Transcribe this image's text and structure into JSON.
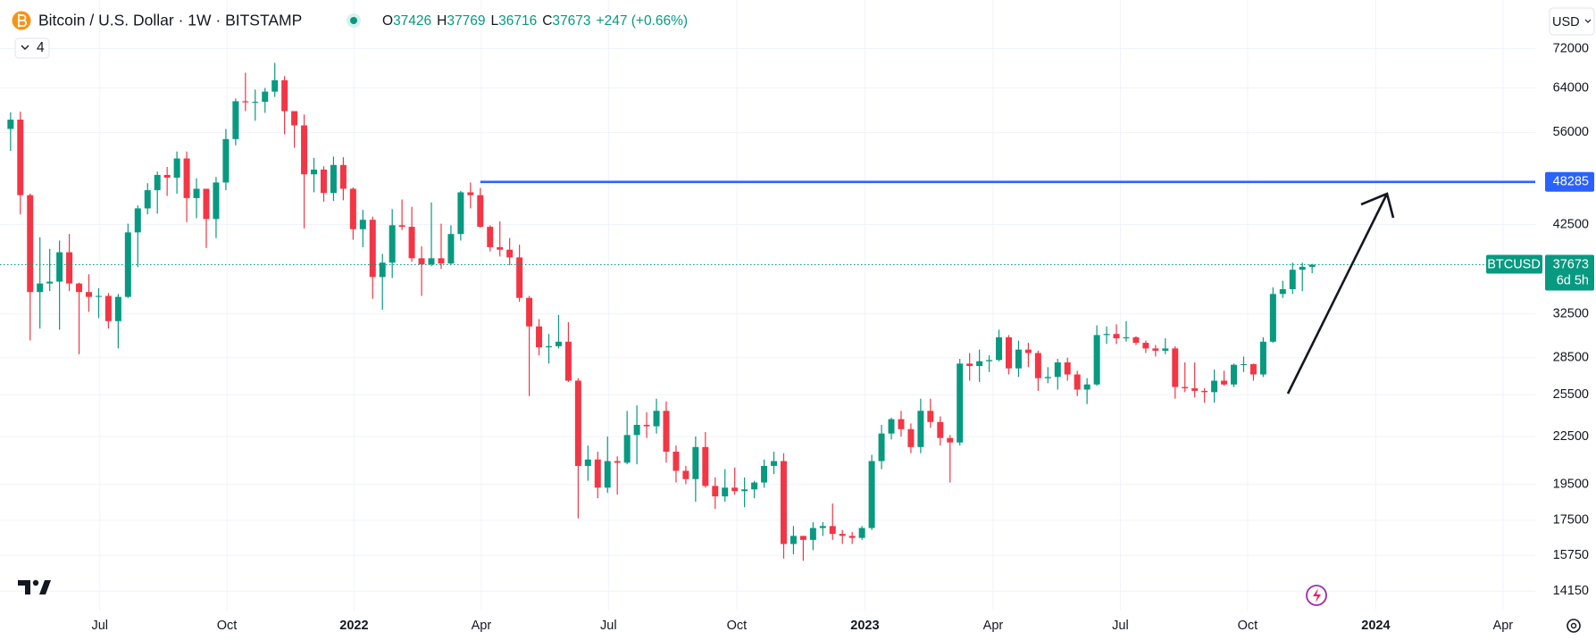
{
  "header": {
    "symbol": "Bitcoin / U.S. Dollar · 1W · BITSTAMP",
    "ohlc_letters": [
      "O",
      "H",
      "L",
      "C"
    ],
    "change": "+247 (+0.66%)",
    "indicator_count": "4",
    "currency": "USD"
  },
  "chart_data": {
    "type": "candlestick",
    "up_color": "#089981",
    "down_color": "#f23645",
    "log_scale": true,
    "grid": true,
    "open": [
      56600,
      58200,
      46400,
      34700,
      35600,
      35800,
      39100,
      35600,
      34700,
      34200,
      34300,
      31800,
      34200,
      41500,
      44600,
      47100,
      49300,
      48900,
      51800,
      46000,
      47300,
      43200,
      48200,
      54900,
      61500,
      61300,
      61400,
      63300,
      65500,
      59700,
      57200,
      49400,
      50100,
      46700,
      50800,
      47300,
      41900,
      43100,
      36300,
      37900,
      42400,
      42200,
      38400,
      37700,
      38400,
      37800,
      41300,
      46800,
      46400,
      42200,
      39700,
      39400,
      38500,
      34100,
      31300,
      29400,
      29500,
      29900,
      26600,
      20600,
      21000,
      19300,
      20900,
      20800,
      22600,
      23300,
      23200,
      24300,
      21500,
      20300,
      19800,
      21800,
      19400,
      18800,
      19300,
      19100,
      19200,
      19600,
      20600,
      20900,
      16300,
      16700,
      16500,
      17100,
      17200,
      16800,
      16700,
      16600,
      17100,
      20900,
      22700,
      23700,
      23000,
      21800,
      24300,
      23500,
      22400,
      22100,
      28000,
      27800,
      28200,
      28300,
      30300,
      27600,
      29200,
      28900,
      26800,
      26900,
      28100,
      27100,
      25900,
      26300,
      30500,
      30600,
      30200,
      30300,
      29800,
      29300,
      29100,
      29300,
      26100,
      26000,
      25800,
      25700,
      26600,
      26300,
      27900,
      27950,
      27100,
      29900,
      34500,
      35000,
      37100,
      37426
    ],
    "high": [
      59500,
      59600,
      46600,
      40900,
      39500,
      40500,
      41300,
      35700,
      36600,
      35100,
      34600,
      34500,
      42600,
      45000,
      48100,
      49800,
      50500,
      52900,
      52900,
      48800,
      47300,
      49000,
      56600,
      62000,
      67000,
      63700,
      64000,
      69000,
      66300,
      59700,
      59100,
      51900,
      50600,
      52100,
      52000,
      47500,
      44400,
      43500,
      38900,
      44500,
      45800,
      44800,
      39800,
      45400,
      42600,
      42400,
      47000,
      48200,
      47400,
      42400,
      42900,
      40800,
      40000,
      34300,
      32000,
      30600,
      32400,
      31700,
      26800,
      21900,
      21500,
      22500,
      21200,
      24300,
      24700,
      24200,
      25200,
      25000,
      21900,
      20600,
      22500,
      22800,
      19900,
      20400,
      20500,
      19900,
      19700,
      21000,
      21500,
      21400,
      17200,
      16700,
      17400,
      17400,
      18400,
      17000,
      16900,
      17200,
      21300,
      23300,
      23800,
      24300,
      23400,
      25200,
      25200,
      23900,
      22600,
      28400,
      28900,
      29200,
      28700,
      31000,
      30500,
      30000,
      29800,
      29100,
      27700,
      28400,
      28500,
      27400,
      26800,
      31400,
      31300,
      31500,
      31800,
      30400,
      30000,
      29600,
      30200,
      29500,
      28100,
      28100,
      26000,
      27500,
      27400,
      28000,
      28600,
      28000,
      30300,
      35200,
      35900,
      37900,
      37900,
      37769
    ],
    "low": [
      53000,
      43800,
      30000,
      31100,
      34800,
      31000,
      34800,
      28800,
      32700,
      32100,
      31100,
      29300,
      34100,
      37400,
      43800,
      43900,
      46300,
      46600,
      42800,
      43300,
      39600,
      40800,
      47100,
      53900,
      59700,
      58000,
      59400,
      62300,
      55700,
      53500,
      42000,
      46800,
      45500,
      45600,
      45700,
      40600,
      39700,
      34000,
      32900,
      36200,
      41800,
      38000,
      34300,
      37500,
      37200,
      37600,
      40500,
      44600,
      42100,
      39200,
      38600,
      37600,
      33700,
      25400,
      28700,
      28000,
      29300,
      26500,
      17600,
      19700,
      18700,
      19000,
      18900,
      20700,
      20700,
      22400,
      22700,
      20800,
      19600,
      19500,
      18500,
      19300,
      18100,
      18500,
      18900,
      18200,
      18700,
      19300,
      20100,
      15600,
      15800,
      15500,
      16000,
      16700,
      16500,
      16300,
      16300,
      16500,
      17000,
      20400,
      22300,
      22500,
      21400,
      21400,
      23100,
      21900,
      19600,
      21900,
      26600,
      26500,
      27300,
      28200,
      27100,
      26900,
      27700,
      25800,
      26400,
      25900,
      26600,
      25400,
      24800,
      26200,
      29700,
      29700,
      29900,
      29600,
      28900,
      28600,
      28800,
      25200,
      25700,
      25300,
      24900,
      24900,
      26200,
      26100,
      27300,
      26600,
      26900,
      29800,
      34100,
      34500,
      34800,
      36716
    ],
    "close": [
      58200,
      46400,
      34700,
      35600,
      35800,
      39100,
      35600,
      34700,
      34200,
      34300,
      31800,
      34200,
      41500,
      44600,
      47100,
      49300,
      48900,
      51800,
      46000,
      47300,
      43200,
      48200,
      54900,
      61500,
      61300,
      61400,
      63300,
      65500,
      59700,
      57200,
      49400,
      50100,
      46700,
      50800,
      47300,
      41900,
      43100,
      36300,
      37900,
      42400,
      42200,
      38400,
      37700,
      38400,
      37800,
      41300,
      46800,
      46400,
      42200,
      39700,
      39400,
      38500,
      34100,
      31300,
      29400,
      29500,
      29900,
      26600,
      20600,
      21000,
      19300,
      20900,
      20800,
      22600,
      23300,
      23200,
      24300,
      21500,
      20300,
      19800,
      21800,
      19400,
      18800,
      19300,
      19100,
      19200,
      19600,
      20600,
      20900,
      16300,
      16700,
      16500,
      17100,
      17200,
      16800,
      16700,
      16600,
      17100,
      20900,
      22700,
      23700,
      23000,
      21800,
      24300,
      23500,
      22400,
      22100,
      28000,
      27800,
      28200,
      28300,
      30300,
      27600,
      29200,
      28900,
      26800,
      26900,
      28100,
      27100,
      25900,
      26300,
      30500,
      30600,
      30200,
      30300,
      29800,
      29300,
      29100,
      29300,
      26100,
      26000,
      25800,
      25700,
      26600,
      26300,
      27900,
      27950,
      27100,
      29900,
      34500,
      35000,
      37100,
      37426,
      37673
    ],
    "xlim": [
      -1.08,
      155.8
    ],
    "xticks": [
      {
        "value": 9.12,
        "label": "Jul"
      },
      {
        "value": 22.1,
        "label": "Oct"
      },
      {
        "value": 35.1,
        "label": "2022"
      },
      {
        "value": 48.1,
        "label": "Apr"
      },
      {
        "value": 61.1,
        "label": "Jul"
      },
      {
        "value": 74.2,
        "label": "Oct"
      },
      {
        "value": 87.3,
        "label": "2023"
      },
      {
        "value": 100.4,
        "label": "Apr"
      },
      {
        "value": 113.4,
        "label": "Jul"
      },
      {
        "value": 126.4,
        "label": "Oct"
      },
      {
        "value": 139.5,
        "label": "2024"
      },
      {
        "value": 152.5,
        "label": "Apr"
      }
    ],
    "ylim": [
      13350,
      83320
    ],
    "yticks": [
      14150,
      15750,
      17500,
      19500,
      22500,
      25500,
      28500,
      32500,
      42500,
      56000,
      64000,
      72000
    ],
    "horizontal_line": {
      "value": 48285,
      "start": 48,
      "color": "#2962ff"
    },
    "price_label": {
      "symbol": "BTCUSD",
      "countdown": "6d 5h"
    }
  }
}
